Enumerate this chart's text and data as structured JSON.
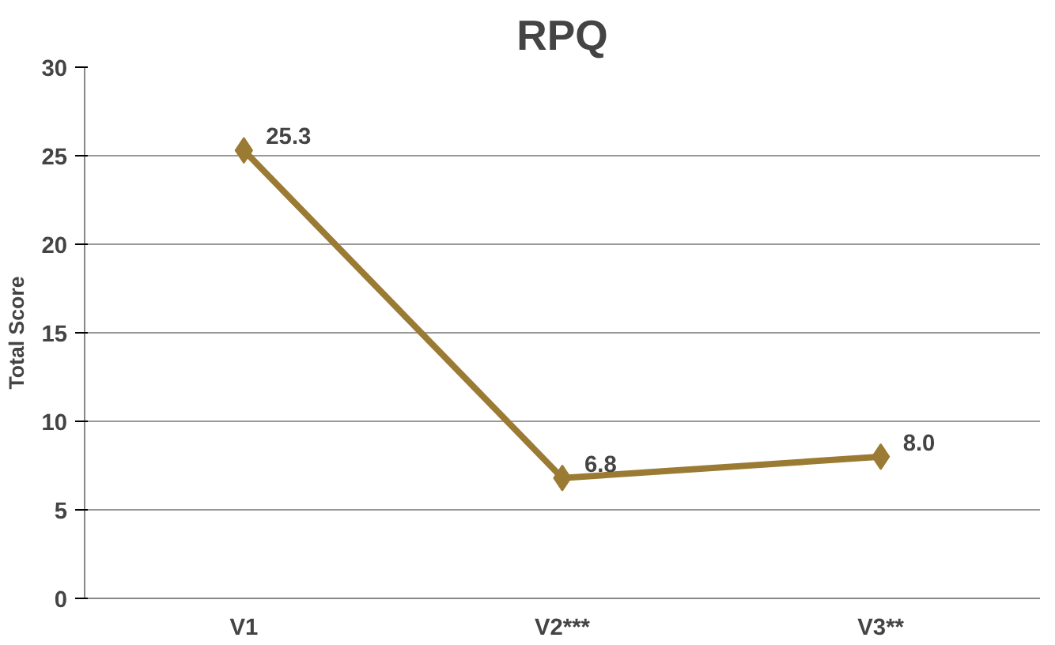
{
  "chart_data": {
    "type": "line",
    "title": "RPQ",
    "ylabel": "Total Score",
    "categories": [
      "V1",
      "V2***",
      "V3**"
    ],
    "series": [
      {
        "color": "#9b7b34",
        "values": [
          25.3,
          6.8,
          8.0
        ],
        "value_labels": [
          "25.3",
          "6.8",
          "8.0"
        ]
      }
    ],
    "ylim": [
      0,
      30
    ],
    "yticks": [
      0,
      5,
      10,
      15,
      20,
      25,
      30
    ],
    "grid": "y",
    "marker": "diamond",
    "line_style": "solid"
  }
}
